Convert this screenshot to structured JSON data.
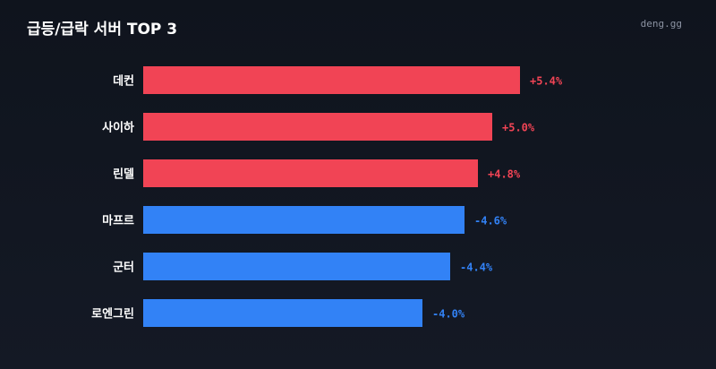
{
  "header": {
    "title": "급등/급락 서버 TOP 3",
    "brand": "deng.gg"
  },
  "colors": {
    "up": "#f14455",
    "down": "#3282f6"
  },
  "chart_data": {
    "type": "bar",
    "orientation": "horizontal",
    "title": "급등/급락 서버 TOP 3",
    "categories": [
      "데컨",
      "사이하",
      "린델",
      "마프르",
      "군터",
      "로엔그린"
    ],
    "values": [
      5.4,
      5.0,
      4.8,
      -4.6,
      -4.4,
      -4.0
    ],
    "value_labels": [
      "+5.4%",
      "+5.0%",
      "+4.8%",
      "-4.6%",
      "-4.4%",
      "-4.0%"
    ],
    "bar_magnitude": "absolute value",
    "xlim": [
      0,
      5.4
    ],
    "grid": false,
    "legend": "none"
  }
}
